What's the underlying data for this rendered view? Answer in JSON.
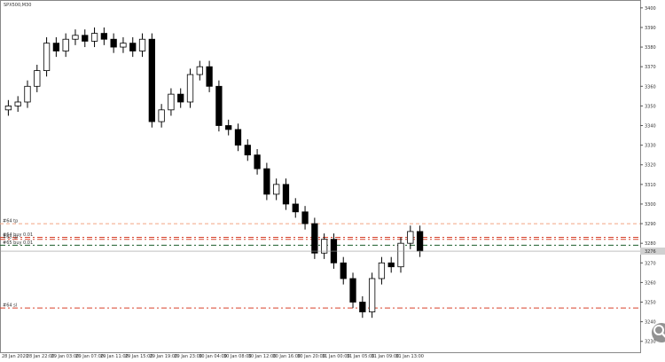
{
  "chart_data": {
    "type": "candlestick",
    "title": "SPX500,M30",
    "open": [
      3348,
      3350,
      3352,
      3360,
      3368,
      3382,
      3378,
      3384,
      3386,
      3383,
      3387,
      3384,
      3380,
      3382,
      3378,
      3384,
      3342,
      3348,
      3356,
      3352,
      3366,
      3370,
      3360,
      3340,
      3338,
      3330,
      3325,
      3318,
      3305,
      3310,
      3300,
      3296,
      3290,
      3275,
      3282,
      3270,
      3262,
      3250,
      3245,
      3262,
      3270,
      3268,
      3280,
      3286
    ],
    "high": [
      3353,
      3355,
      3363,
      3371,
      3385,
      3385,
      3387,
      3389,
      3389,
      3390,
      3390,
      3387,
      3385,
      3385,
      3387,
      3387,
      3351,
      3359,
      3359,
      3369,
      3373,
      3373,
      3363,
      3343,
      3341,
      3333,
      3328,
      3321,
      3313,
      3313,
      3303,
      3299,
      3293,
      3285,
      3285,
      3273,
      3265,
      3253,
      3265,
      3273,
      3273,
      3283,
      3289,
      3289
    ],
    "low": [
      3345,
      3347,
      3349,
      3357,
      3365,
      3375,
      3375,
      3381,
      3380,
      3380,
      3381,
      3377,
      3377,
      3375,
      3375,
      3339,
      3339,
      3345,
      3349,
      3349,
      3363,
      3357,
      3337,
      3335,
      3327,
      3322,
      3315,
      3302,
      3302,
      3297,
      3293,
      3287,
      3272,
      3272,
      3267,
      3259,
      3247,
      3242,
      3242,
      3259,
      3265,
      3265,
      3277,
      3273
    ],
    "close": [
      3350,
      3352,
      3360,
      3368,
      3382,
      3378,
      3384,
      3386,
      3383,
      3387,
      3384,
      3380,
      3382,
      3378,
      3384,
      3342,
      3348,
      3356,
      3352,
      3366,
      3370,
      3360,
      3340,
      3338,
      3330,
      3325,
      3318,
      3305,
      3310,
      3300,
      3296,
      3290,
      3275,
      3282,
      3270,
      3262,
      3250,
      3245,
      3262,
      3270,
      3268,
      3280,
      3286,
      3276
    ],
    "ylim": [
      3224,
      3404
    ],
    "yticks": [
      3230,
      3240,
      3250,
      3260,
      3270,
      3280,
      3290,
      3300,
      3310,
      3320,
      3330,
      3340,
      3350,
      3360,
      3370,
      3380,
      3390,
      3400
    ],
    "time_labels": [
      "28 Jan 2020",
      "28 Jan 22:00",
      "29 Jan 03:00",
      "29 Jan 07:00",
      "29 Jan 11:00",
      "29 Jan 15:00",
      "29 Jan 19:00",
      "29 Jan 23:00",
      "30 Jan 04:00",
      "30 Jan 08:00",
      "30 Jan 12:00",
      "30 Jan 16:00",
      "30 Jan 20:00",
      "31 Jan 00:00",
      "31 Jan 05:00",
      "31 Jan 09:00",
      "31 Jan 13:00"
    ],
    "levels": [
      {
        "label": "#64 tp",
        "value": 3290,
        "color": "#f4a582",
        "dash": "4,3"
      },
      {
        "label": "#64 buy 0.01",
        "value": 3283,
        "color": "#d6402a",
        "dash": "6,3,2,3"
      },
      {
        "label": "#65 tp",
        "value": 3282,
        "color": "#d6402a",
        "dash": "6,3,2,3"
      },
      {
        "label": "#65 buy 0.01",
        "value": 3279,
        "color": "#1a5c2a",
        "dash": "6,3,2,3"
      },
      {
        "label": "#64 sl",
        "value": 3247,
        "color": "#d6402a",
        "dash": "6,3,2,3"
      }
    ],
    "last_price": 3276
  }
}
